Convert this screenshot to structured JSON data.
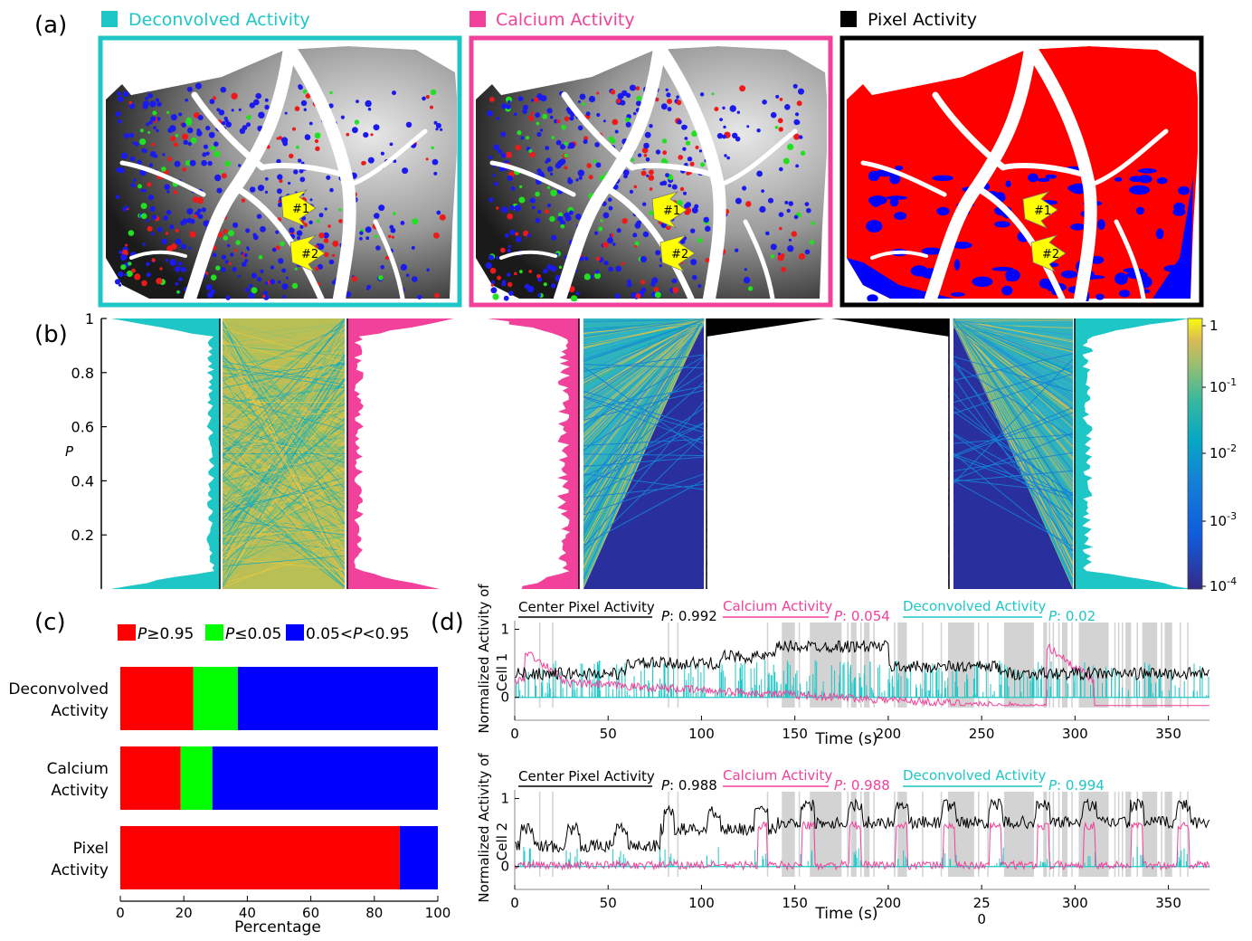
{
  "panel_labels": {
    "a": "(a)",
    "b": "(b)",
    "c": "(c)",
    "d": "(d)"
  },
  "colors": {
    "deconvolved": "#1ec6c6",
    "calcium": "#f2419a",
    "pixel": "#000000",
    "high": "#ff0000",
    "low": "#00ff00",
    "mid": "#0000ff"
  },
  "panel_a": {
    "legends": [
      "Deconvolved Activity",
      "Calcium Activity",
      "Pixel Activity"
    ],
    "markers": [
      "#1",
      "#2"
    ]
  },
  "chart_data": [
    {
      "id": "b",
      "type": "area",
      "ylabel": "P",
      "ylim": [
        0,
        1
      ],
      "yticks": [
        "0.2",
        "0.4",
        "0.6",
        "0.8",
        "1"
      ],
      "colorbar": {
        "scale": "log",
        "ticks": [
          "1",
          "10^{-1}",
          "10^{-2}",
          "10^{-3}",
          "10^{-4}"
        ],
        "range": [
          0.0001,
          1
        ]
      },
      "comparisons": [
        {
          "left": "Deconvolved Activity",
          "right": "Calcium Activity"
        },
        {
          "left": "Calcium Activity",
          "right": "Pixel Activity"
        },
        {
          "left": "Pixel Activity",
          "right": "Deconvolved Activity"
        }
      ]
    },
    {
      "id": "c",
      "type": "bar",
      "orientation": "horizontal",
      "stacked": true,
      "xlabel": "Percentage",
      "xlim": [
        0,
        100
      ],
      "xticks": [
        "0",
        "20",
        "40",
        "60",
        "80",
        "100"
      ],
      "legend": [
        {
          "label": "P≥0.95",
          "color": "#ff0000"
        },
        {
          "label": "P≤0.05",
          "color": "#00ff00"
        },
        {
          "label": "0.05<P<0.95",
          "color": "#0000ff"
        }
      ],
      "categories": [
        [
          "Deconvolved",
          "Activity"
        ],
        [
          "Calcium",
          "Activity"
        ],
        [
          "Pixel",
          "Activity"
        ]
      ],
      "series": [
        {
          "values": [
            23,
            19,
            88
          ]
        },
        {
          "values": [
            14,
            10,
            0
          ]
        },
        {
          "values": [
            63,
            71,
            12
          ]
        }
      ]
    },
    {
      "id": "d1",
      "type": "line",
      "ylabel": [
        "Normalized Activity of",
        "Cell 1"
      ],
      "xlabel": "Time (s)",
      "xlim": [
        0,
        372
      ],
      "ylim": [
        -0.15,
        1.1
      ],
      "xticks": [
        "0",
        "50",
        "100",
        "150",
        "200",
        "250",
        "300",
        "350"
      ],
      "yticks": [
        "0",
        "1"
      ],
      "titles": [
        {
          "text": "Center Pixel Activity",
          "p": "P",
          "value": ": 0.992"
        },
        {
          "text": "Calcium Activity",
          "p": "P",
          "value": ": 0.054"
        },
        {
          "text": "Deconvolved Activity",
          "p": "P",
          "value": ": 0.02"
        }
      ],
      "shaded_intervals": [
        [
          143,
          150
        ],
        [
          158,
          175
        ],
        [
          180,
          183
        ],
        [
          187,
          190
        ],
        [
          205,
          210
        ],
        [
          232,
          246
        ],
        [
          262,
          278
        ],
        [
          283,
          285
        ],
        [
          293,
          296
        ],
        [
          302,
          318
        ],
        [
          327,
          330
        ],
        [
          336,
          344
        ],
        [
          348,
          352
        ]
      ],
      "thin_lines": [
        13,
        20,
        82,
        87,
        135,
        152,
        178,
        185,
        188,
        192,
        203,
        218,
        228,
        248,
        253,
        286,
        288,
        291,
        298,
        321,
        323,
        325,
        333,
        346,
        356,
        360
      ]
    },
    {
      "id": "d2",
      "type": "line",
      "ylabel": [
        "Normalized Activity of",
        "Cell 2"
      ],
      "xlabel": "Time (s)",
      "xlim": [
        0,
        372
      ],
      "ylim": [
        -0.15,
        1.1
      ],
      "xticks": [
        "0",
        "50",
        "100",
        "150",
        "200",
        "25\n0",
        "300",
        "350"
      ],
      "yticks": [
        "0",
        "1"
      ],
      "titles": [
        {
          "text": "Center Pixel Activity",
          "p": "P",
          "value": ": 0.988"
        },
        {
          "text": "Calcium Activity",
          "p": "P",
          "value": ": 0.988"
        },
        {
          "text": "Deconvolved Activity",
          "p": "P",
          "value": ": 0.994"
        }
      ],
      "shaded_intervals": [
        [
          143,
          150
        ],
        [
          158,
          175
        ],
        [
          180,
          183
        ],
        [
          187,
          190
        ],
        [
          205,
          210
        ],
        [
          232,
          246
        ],
        [
          262,
          278
        ],
        [
          283,
          285
        ],
        [
          293,
          296
        ],
        [
          302,
          318
        ],
        [
          327,
          330
        ],
        [
          336,
          344
        ],
        [
          348,
          352
        ]
      ],
      "thin_lines": [
        13,
        20,
        82,
        87,
        135,
        152,
        178,
        185,
        188,
        192,
        203,
        218,
        228,
        248,
        253,
        286,
        288,
        291,
        298,
        321,
        323,
        325,
        333,
        346,
        356,
        360
      ]
    }
  ]
}
